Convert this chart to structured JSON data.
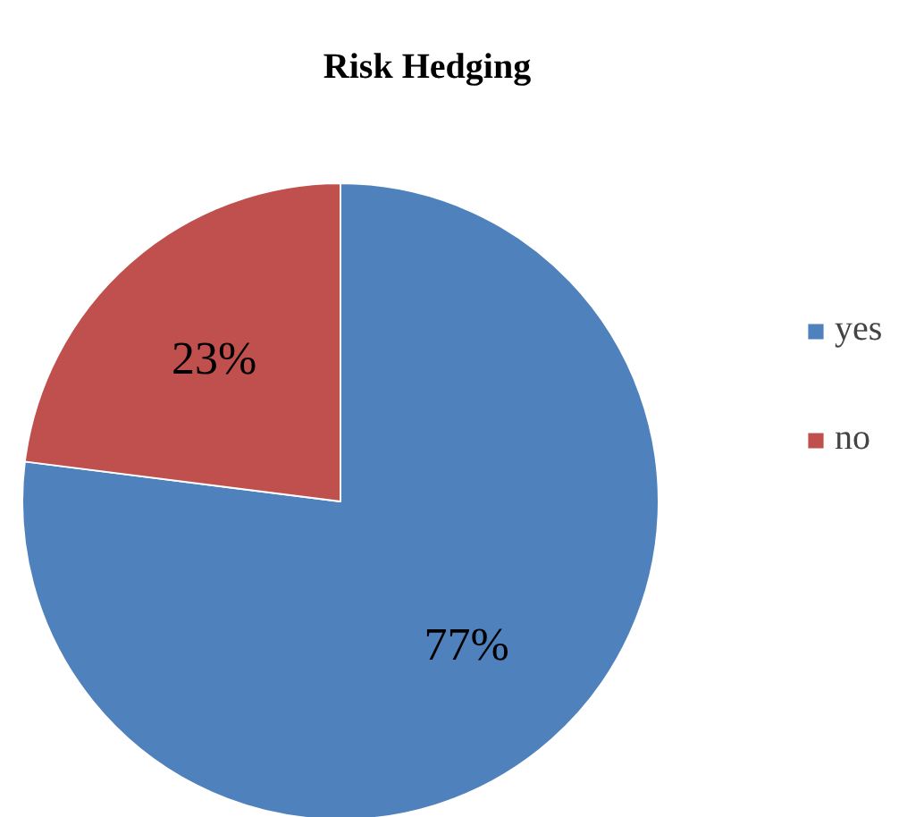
{
  "chart_data": {
    "type": "pie",
    "title": "Risk Hedging",
    "categories": [
      "yes",
      "no"
    ],
    "values": [
      77,
      23
    ],
    "colors": [
      "#4f81bd",
      "#c0504d"
    ],
    "value_labels": [
      "77%",
      "23%"
    ],
    "legend": "right"
  }
}
